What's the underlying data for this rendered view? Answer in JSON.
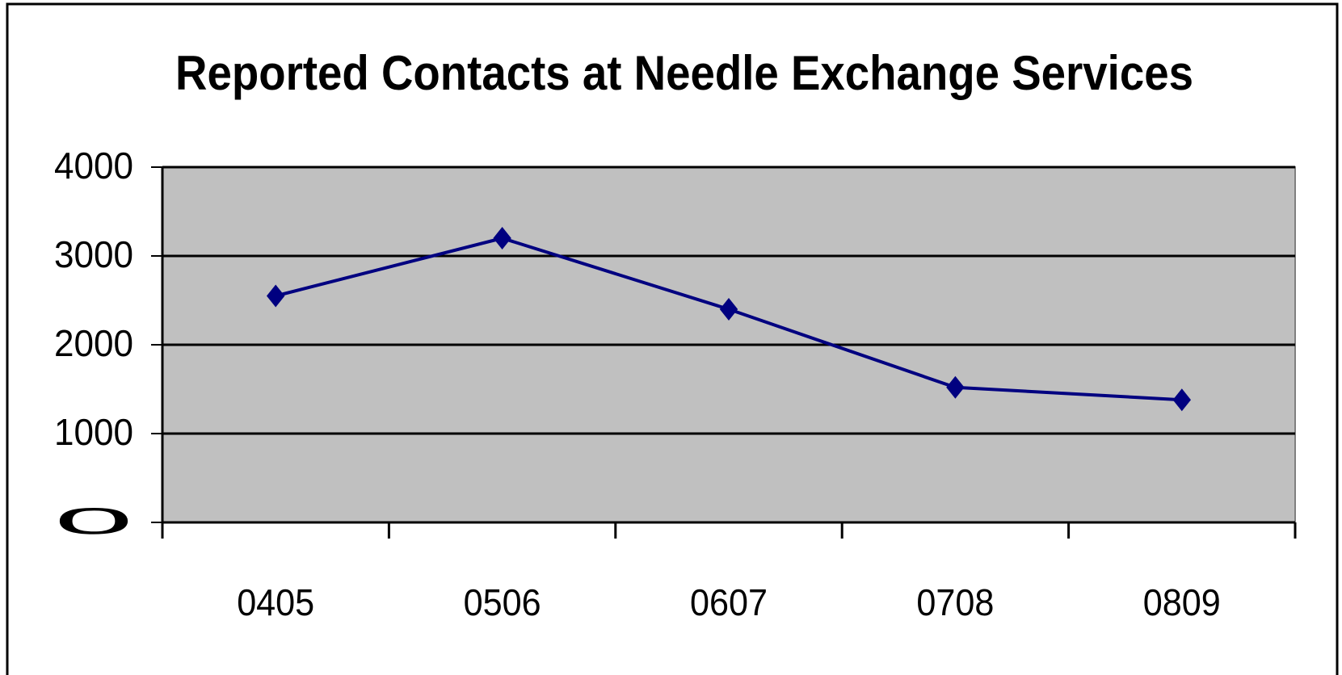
{
  "chart_data": {
    "type": "line",
    "title": "Reported Contacts at Needle Exchange Services",
    "categories": [
      "0405",
      "0506",
      "0607",
      "0708",
      "0809"
    ],
    "values": [
      2550,
      3200,
      2400,
      1520,
      1380
    ],
    "color": "#000080",
    "ylim": [
      0,
      4000
    ],
    "yticks": [
      0,
      1000,
      2000,
      3000,
      4000
    ],
    "grid": true
  }
}
